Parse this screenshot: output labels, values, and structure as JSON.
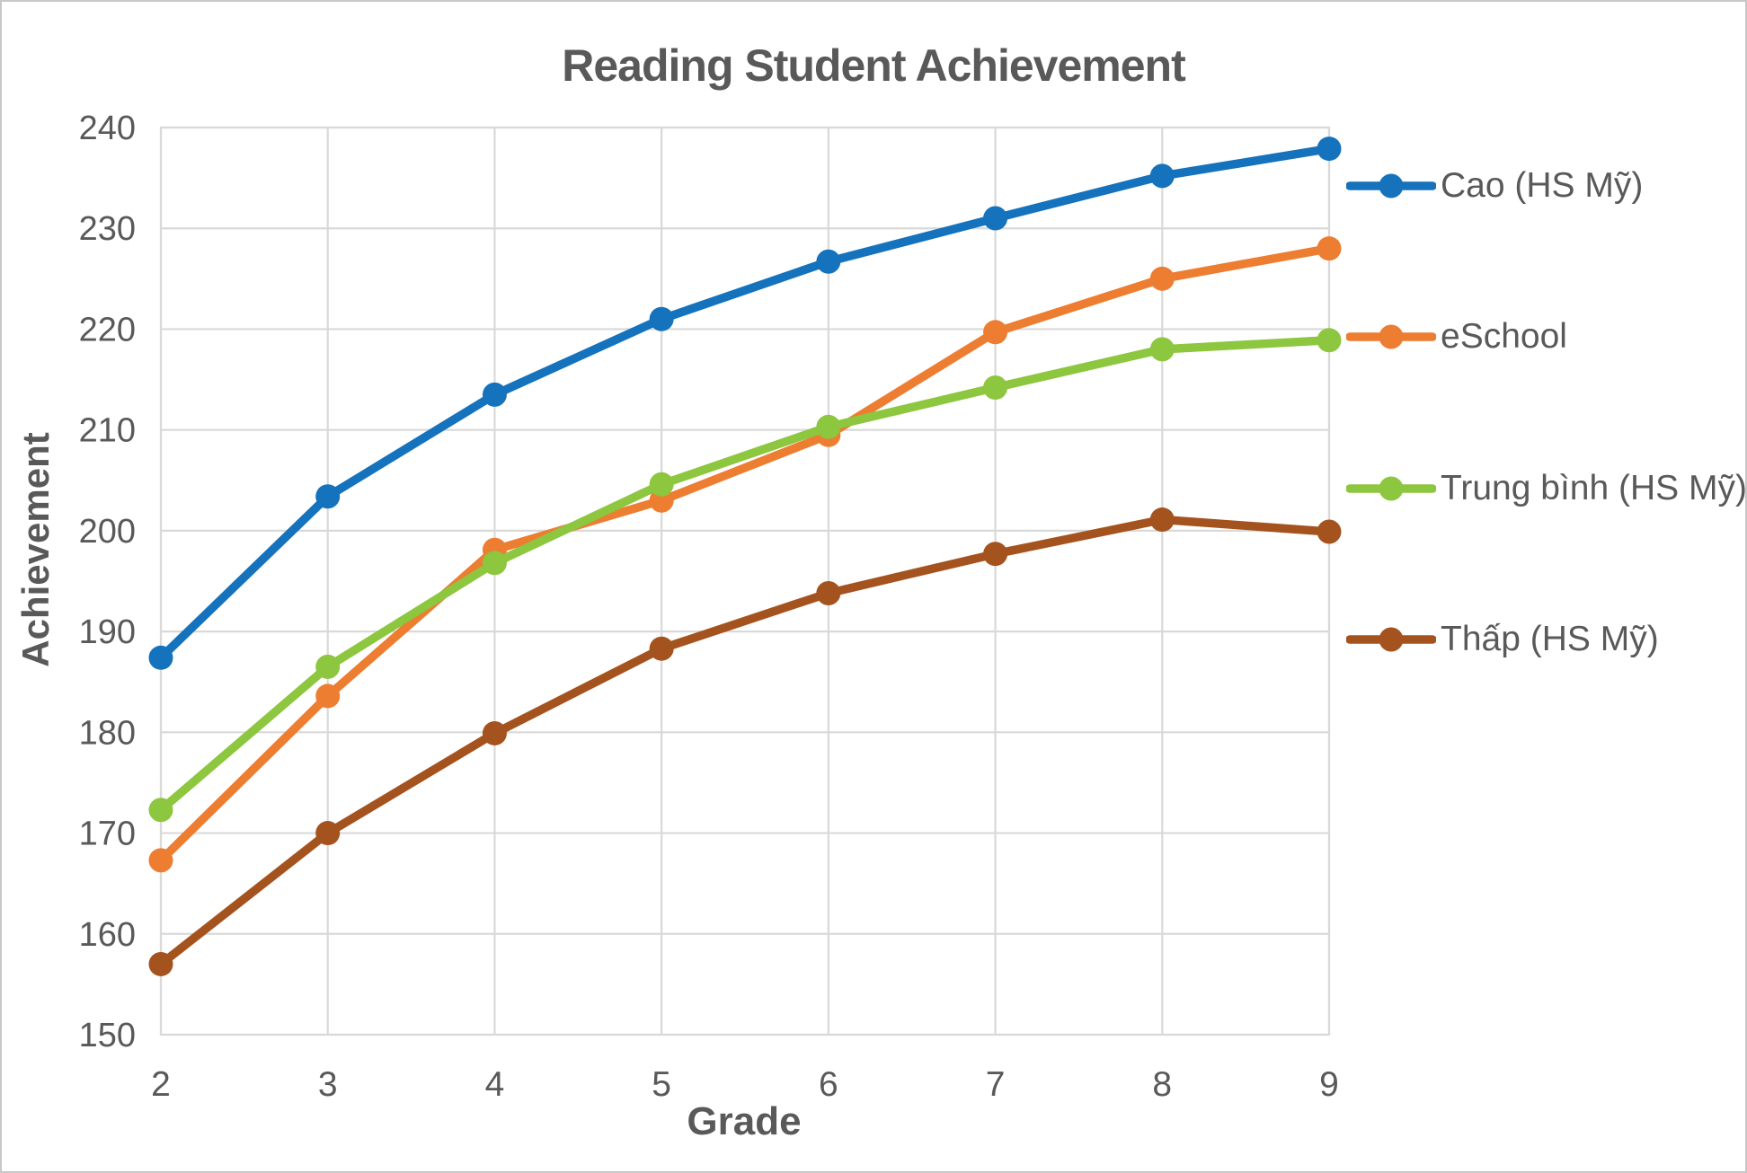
{
  "chart_data": {
    "type": "line",
    "title": "Reading Student Achievement",
    "xlabel": "Grade",
    "ylabel": "Achievement",
    "x": [
      2,
      3,
      4,
      5,
      6,
      7,
      8,
      9
    ],
    "xlim": [
      2,
      9
    ],
    "ylim": [
      150,
      240
    ],
    "ytick_step": 10,
    "grid": true,
    "legend_position": "right",
    "colors": {
      "grid": "#d9d9d9",
      "text": "#595959",
      "background": "#ffffff"
    },
    "series": [
      {
        "name": "Cao (HS Mỹ)",
        "color": "#1572bc",
        "values": [
          187.4,
          203.4,
          213.5,
          221.0,
          226.7,
          231.0,
          235.2,
          237.9
        ]
      },
      {
        "name": "eSchool",
        "color": "#ed7d31",
        "values": [
          167.3,
          183.6,
          198.1,
          203.0,
          209.5,
          219.7,
          225.0,
          228.0
        ]
      },
      {
        "name": "Trung bình (HS Mỹ)",
        "color": "#8dc63f",
        "values": [
          172.3,
          186.5,
          196.8,
          204.6,
          210.3,
          214.2,
          218.0,
          218.9
        ]
      },
      {
        "name": "Thấp (HS Mỹ)",
        "color": "#a5531e",
        "values": [
          157.0,
          170.0,
          179.9,
          188.3,
          193.8,
          197.7,
          201.1,
          199.9
        ]
      }
    ]
  }
}
